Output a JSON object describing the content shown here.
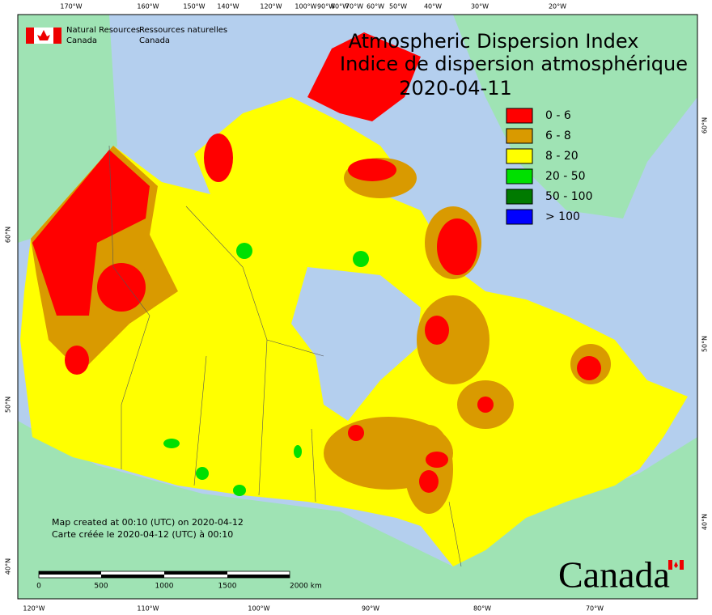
{
  "header": {
    "org_en": [
      "Natural Resources",
      "Canada"
    ],
    "org_fr": [
      "Ressources naturelles",
      "Canada"
    ],
    "title_en": "Atmospheric Dispersion Index",
    "title_fr": "Indice de dispersion atmosphérique",
    "date": "2020-04-11"
  },
  "legend": {
    "items": [
      {
        "label": "0 - 6",
        "color": "#ff0000"
      },
      {
        "label": "6 - 8",
        "color": "#d99a00"
      },
      {
        "label": "8 - 20",
        "color": "#ffff00"
      },
      {
        "label": "20 - 50",
        "color": "#00e000"
      },
      {
        "label": "50 - 100",
        "color": "#007a00"
      },
      {
        "label": "> 100",
        "color": "#0000ff"
      }
    ]
  },
  "graticule": {
    "top": [
      "170°W",
      "160°W",
      "150°W",
      "140°W",
      "120°W",
      "100°W",
      "90°W",
      "80°W",
      "70°W",
      "60°W",
      "50°W",
      "40°W",
      "30°W",
      "20°W"
    ],
    "bottom": [
      "120°W",
      "110°W",
      "100°W",
      "90°W",
      "80°W",
      "70°W"
    ],
    "left": [
      "60°N",
      "50°N",
      "40°N"
    ],
    "right": [
      "60°N",
      "50°N",
      "40°N"
    ]
  },
  "notes": [
    "Map created at 00:10 (UTC) on 2020-04-12",
    "Carte créée le 2020-04-12 (UTC) à 00:10"
  ],
  "scale_bar": {
    "labels": [
      "0",
      "500",
      "1000",
      "1500",
      "2000 km"
    ]
  },
  "wordmark": "Canada"
}
